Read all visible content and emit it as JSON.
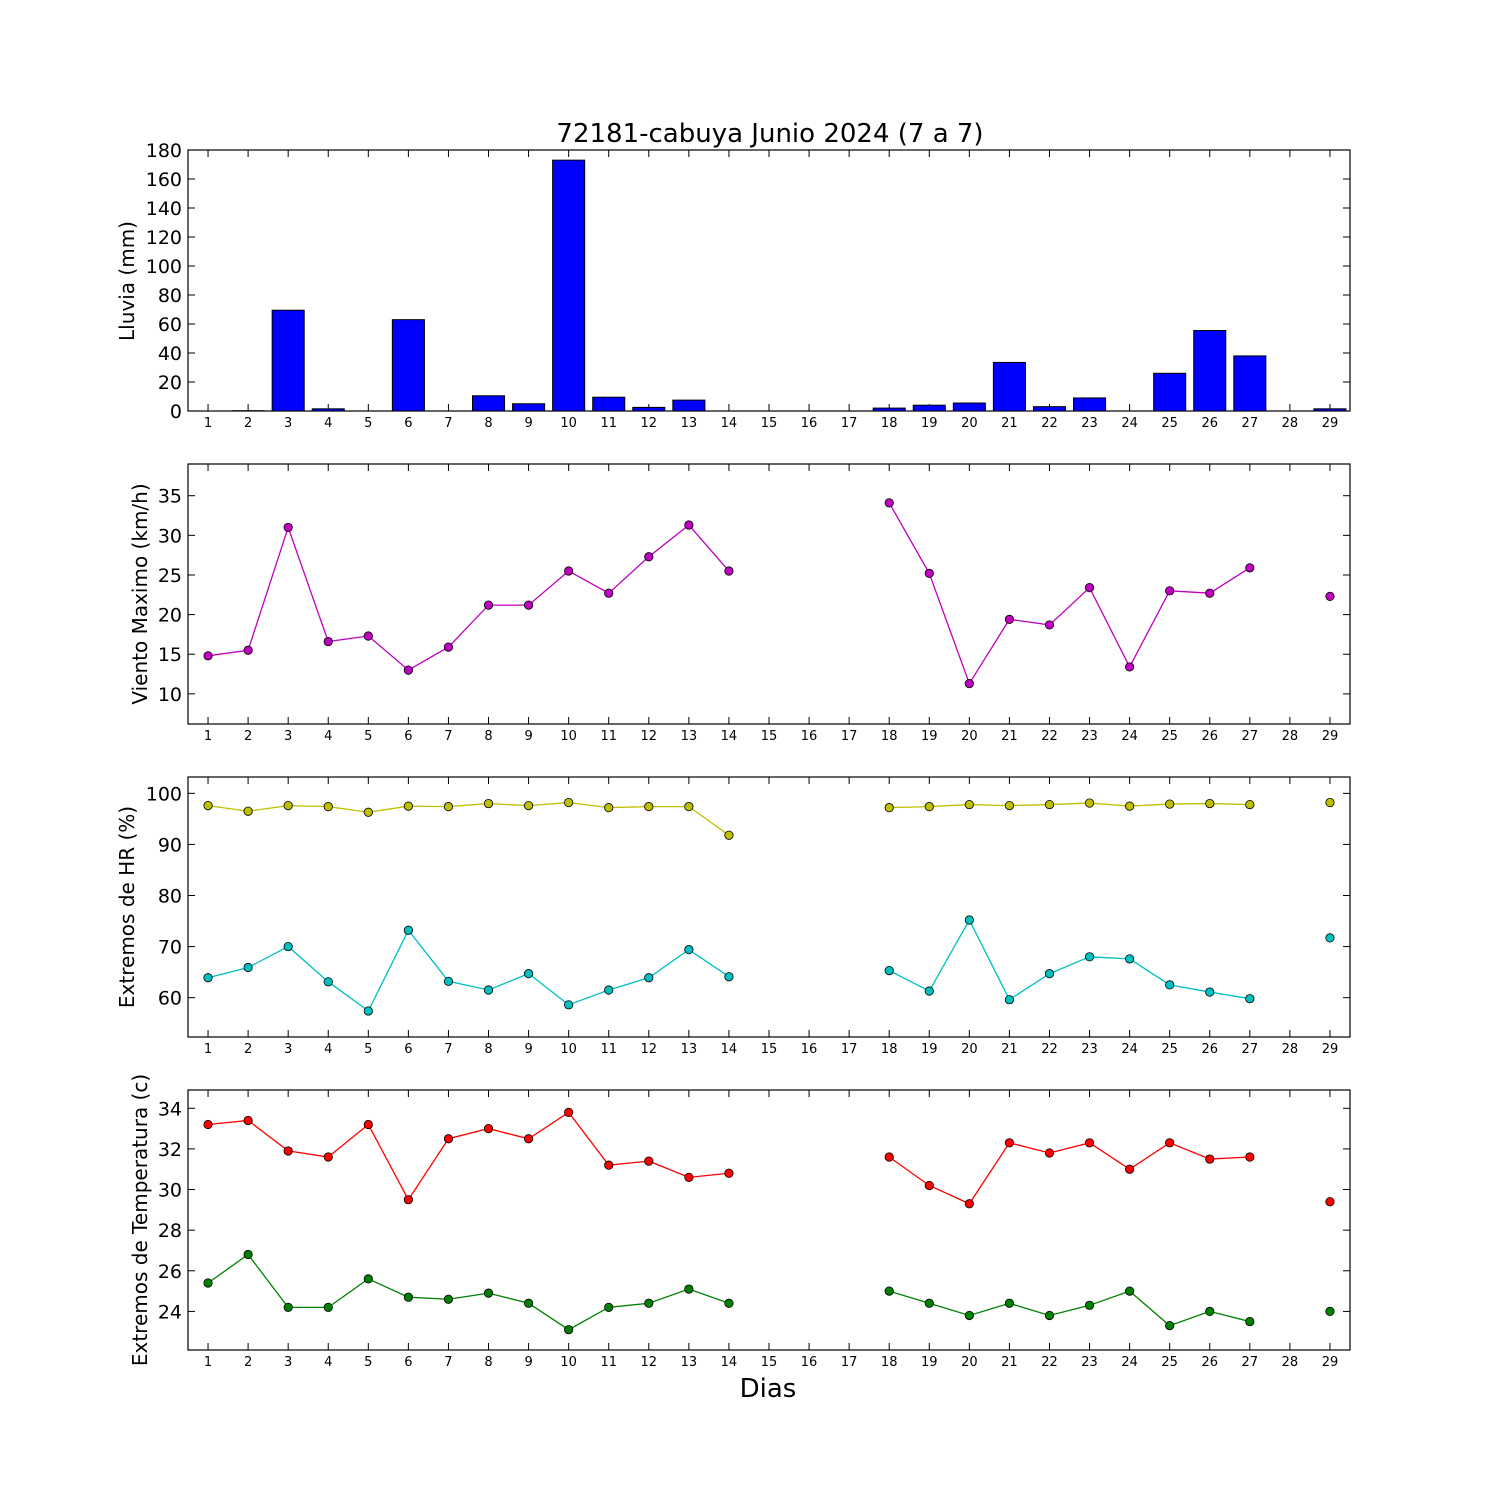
{
  "figure": {
    "title": "72181-cabuya Junio 2024  (7 a 7)",
    "xlabel": "Dias"
  },
  "chart_data": [
    {
      "type": "bar",
      "ylabel": "Lluvia (mm)",
      "x": [
        1,
        2,
        3,
        4,
        5,
        6,
        7,
        8,
        9,
        10,
        11,
        12,
        13,
        14,
        15,
        16,
        17,
        18,
        19,
        20,
        21,
        22,
        23,
        24,
        25,
        26,
        27,
        28,
        29
      ],
      "xticks": [
        1,
        2,
        3,
        4,
        5,
        6,
        7,
        8,
        9,
        10,
        11,
        12,
        13,
        14,
        15,
        16,
        17,
        18,
        19,
        20,
        21,
        22,
        23,
        24,
        25,
        26,
        27,
        28,
        29
      ],
      "ylim": [
        0,
        180
      ],
      "yticks": [
        0,
        20,
        40,
        60,
        80,
        100,
        120,
        140,
        160,
        180
      ],
      "color": "#0000ff",
      "values": [
        0,
        0.2,
        69.5,
        1.5,
        0,
        63,
        0,
        10.5,
        5,
        173,
        9.5,
        2.5,
        7.5,
        0,
        0,
        0,
        0,
        2,
        4,
        5.5,
        33.5,
        3,
        9,
        0,
        26,
        55.5,
        38,
        0,
        1.5
      ]
    },
    {
      "type": "line",
      "ylabel": "Viento Maximo (km/h)",
      "x": [
        1,
        2,
        3,
        4,
        5,
        6,
        7,
        8,
        9,
        10,
        11,
        12,
        13,
        14,
        15,
        16,
        17,
        18,
        19,
        20,
        21,
        22,
        23,
        24,
        25,
        26,
        27,
        28,
        29
      ],
      "xticks": [
        1,
        2,
        3,
        4,
        5,
        6,
        7,
        8,
        9,
        10,
        11,
        12,
        13,
        14,
        15,
        16,
        17,
        18,
        19,
        20,
        21,
        22,
        23,
        24,
        25,
        26,
        27,
        28,
        29
      ],
      "ylim": [
        6.2,
        39
      ],
      "yticks": [
        10,
        15,
        20,
        25,
        30,
        35
      ],
      "series": [
        {
          "color": "#bf00bf",
          "values": [
            14.8,
            15.5,
            31,
            16.6,
            17.3,
            13,
            15.9,
            21.2,
            21.2,
            25.5,
            22.7,
            27.3,
            31.3,
            25.5,
            null,
            null,
            null,
            34.1,
            25.2,
            11.3,
            19.4,
            18.7,
            23.4,
            13.4,
            23,
            22.7,
            25.9,
            null,
            22.3
          ]
        }
      ]
    },
    {
      "type": "line",
      "ylabel": "Extremos de HR (%)",
      "x": [
        1,
        2,
        3,
        4,
        5,
        6,
        7,
        8,
        9,
        10,
        11,
        12,
        13,
        14,
        15,
        16,
        17,
        18,
        19,
        20,
        21,
        22,
        23,
        24,
        25,
        26,
        27,
        28,
        29
      ],
      "xticks": [
        1,
        2,
        3,
        4,
        5,
        6,
        7,
        8,
        9,
        10,
        11,
        12,
        13,
        14,
        15,
        16,
        17,
        18,
        19,
        20,
        21,
        22,
        23,
        24,
        25,
        26,
        27,
        28,
        29
      ],
      "ylim": [
        52.3,
        103.2
      ],
      "yticks": [
        60,
        70,
        80,
        90,
        100
      ],
      "series": [
        {
          "color": "#bfbf00",
          "values": [
            97.6,
            96.5,
            97.6,
            97.4,
            96.3,
            97.5,
            97.4,
            98,
            97.6,
            98.2,
            97.2,
            97.4,
            97.4,
            91.8,
            null,
            null,
            null,
            97.2,
            97.4,
            97.8,
            97.6,
            97.8,
            98.1,
            97.5,
            97.9,
            98,
            97.8,
            null,
            98.2
          ]
        },
        {
          "color": "#00bfbf",
          "values": [
            63.9,
            65.9,
            70,
            63.1,
            57.4,
            73.2,
            63.2,
            61.5,
            64.7,
            58.6,
            61.5,
            63.9,
            69.4,
            64.1,
            null,
            null,
            null,
            65.3,
            61.3,
            75.2,
            59.6,
            64.7,
            68,
            67.6,
            62.5,
            61.1,
            59.8,
            null,
            71.7
          ]
        }
      ]
    },
    {
      "type": "line",
      "ylabel": "Extremos de Temperatura (c)",
      "x": [
        1,
        2,
        3,
        4,
        5,
        6,
        7,
        8,
        9,
        10,
        11,
        12,
        13,
        14,
        15,
        16,
        17,
        18,
        19,
        20,
        21,
        22,
        23,
        24,
        25,
        26,
        27,
        28,
        29
      ],
      "xticks": [
        1,
        2,
        3,
        4,
        5,
        6,
        7,
        8,
        9,
        10,
        11,
        12,
        13,
        14,
        15,
        16,
        17,
        18,
        19,
        20,
        21,
        22,
        23,
        24,
        25,
        26,
        27,
        28,
        29
      ],
      "ylim": [
        22.1,
        34.9
      ],
      "yticks": [
        24,
        26,
        28,
        30,
        32,
        34
      ],
      "series": [
        {
          "color": "#ff0000",
          "values": [
            33.2,
            33.4,
            31.9,
            31.6,
            33.2,
            29.5,
            32.5,
            33,
            32.5,
            33.8,
            31.2,
            31.4,
            30.6,
            30.8,
            null,
            null,
            null,
            31.6,
            30.2,
            29.3,
            32.3,
            31.8,
            32.3,
            31,
            32.3,
            31.5,
            31.6,
            null,
            29.4
          ]
        },
        {
          "color": "#008000",
          "values": [
            25.4,
            26.8,
            24.2,
            24.2,
            25.6,
            24.7,
            24.6,
            24.9,
            24.4,
            23.1,
            24.2,
            24.4,
            25.1,
            24.4,
            null,
            null,
            null,
            25,
            24.4,
            23.8,
            24.4,
            23.8,
            24.3,
            25,
            23.3,
            24,
            23.5,
            null,
            24
          ]
        }
      ]
    }
  ]
}
